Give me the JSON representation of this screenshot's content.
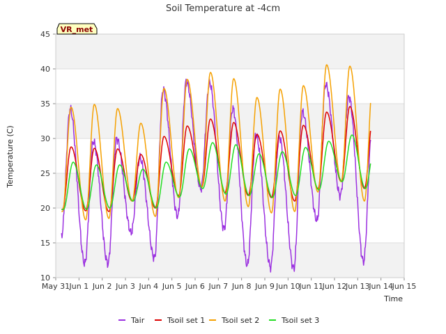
{
  "chart_data": {
    "type": "line",
    "title": "Soil Temperature at -4cm",
    "xlabel": "Time",
    "ylabel": "Temperature (C)",
    "site_label": "VR_met",
    "xlim": [
      "May 31",
      "Jun 15"
    ],
    "ylim": [
      10,
      45
    ],
    "x_ticks": [
      "May 31",
      "Jun 1",
      "Jun 2",
      "Jun 3",
      "Jun 4",
      "Jun 5",
      "Jun 6",
      "Jun 7",
      "Jun 8",
      "Jun 9",
      "Jun 10",
      "Jun 11",
      "Jun 12",
      "Jun 13",
      "Jun 14",
      "Jun 15"
    ],
    "y_ticks": [
      10,
      15,
      20,
      25,
      30,
      35,
      40,
      45
    ],
    "grid": true,
    "banded_background": true,
    "legend_position": "bottom",
    "series": [
      {
        "name": "Tair",
        "color": "#9b30e0",
        "daily_min": [
          16.1,
          12.0,
          12.0,
          16.5,
          12.8,
          18.8,
          22.8,
          17.0,
          11.8,
          11.5,
          11.3,
          18.2,
          21.8,
          12.3,
          14.0
        ],
        "daily_max": [
          34.2,
          29.6,
          30.0,
          27.2,
          37.0,
          38.2,
          38.0,
          34.3,
          30.5,
          30.2,
          33.8,
          37.8,
          36.0,
          31.5
        ]
      },
      {
        "name": "Tsoil set 1",
        "color": "#dd0000",
        "daily_min": [
          19.8,
          19.6,
          19.5,
          21.0,
          20.0,
          21.8,
          23.0,
          22.2,
          21.8,
          21.5,
          21.0,
          22.8,
          23.8,
          22.8,
          25.0
        ],
        "daily_max": [
          28.8,
          28.6,
          28.5,
          27.7,
          30.3,
          31.8,
          32.8,
          32.3,
          30.6,
          31.1,
          31.9,
          33.8,
          34.6,
          33.2
        ]
      },
      {
        "name": "Tsoil set 2",
        "color": "#f5a000",
        "daily_min": [
          19.5,
          18.3,
          18.5,
          21.0,
          18.8,
          21.5,
          23.0,
          21.0,
          20.2,
          19.3,
          19.5,
          22.3,
          23.8,
          21.0,
          23.5
        ],
        "daily_max": [
          34.5,
          34.9,
          34.3,
          32.2,
          37.2,
          38.5,
          39.5,
          38.6,
          35.9,
          37.1,
          37.6,
          40.6,
          40.4,
          38.7
        ]
      },
      {
        "name": "Tsoil set 3",
        "color": "#22dd22",
        "daily_min": [
          19.8,
          19.8,
          20.0,
          21.0,
          20.0,
          21.6,
          22.8,
          22.0,
          21.8,
          21.5,
          21.8,
          22.6,
          23.8,
          22.8,
          25.0
        ],
        "daily_max": [
          26.6,
          26.2,
          26.2,
          25.6,
          26.6,
          28.5,
          29.4,
          29.1,
          27.8,
          28.1,
          28.7,
          29.6,
          30.5,
          29.5
        ]
      }
    ]
  }
}
